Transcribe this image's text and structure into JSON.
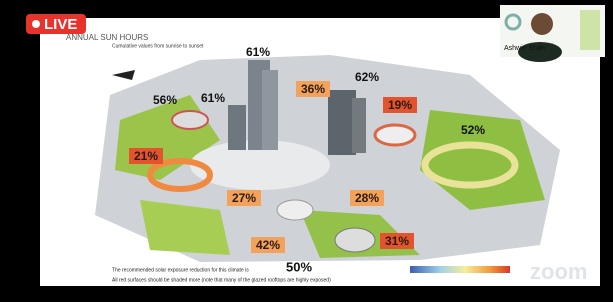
{
  "live_badge": "LIVE",
  "slide": {
    "title": "ANNUAL SUN HOURS",
    "subtitle": "Cumulative values from sunrise to sunset",
    "labels": [
      {
        "text": "61%",
        "style": "plain"
      },
      {
        "text": "56%",
        "style": "plain"
      },
      {
        "text": "61%",
        "style": "plain"
      },
      {
        "text": "36%",
        "style": "orange"
      },
      {
        "text": "62%",
        "style": "plain"
      },
      {
        "text": "19%",
        "style": "red"
      },
      {
        "text": "52%",
        "style": "plain"
      },
      {
        "text": "21%",
        "style": "red"
      },
      {
        "text": "27%",
        "style": "orange"
      },
      {
        "text": "28%",
        "style": "orange"
      },
      {
        "text": "42%",
        "style": "orange"
      },
      {
        "text": "31%",
        "style": "red"
      }
    ],
    "footer": {
      "line1": "The recommended solar exposure reduction for this climate is",
      "value": "50%",
      "line2": "All red surfaces should be shaded more (note that many of the glazed rooftops are highly exposed)"
    }
  },
  "video": {
    "participant": "Ashwin Shah"
  },
  "watermark": "zoom"
}
